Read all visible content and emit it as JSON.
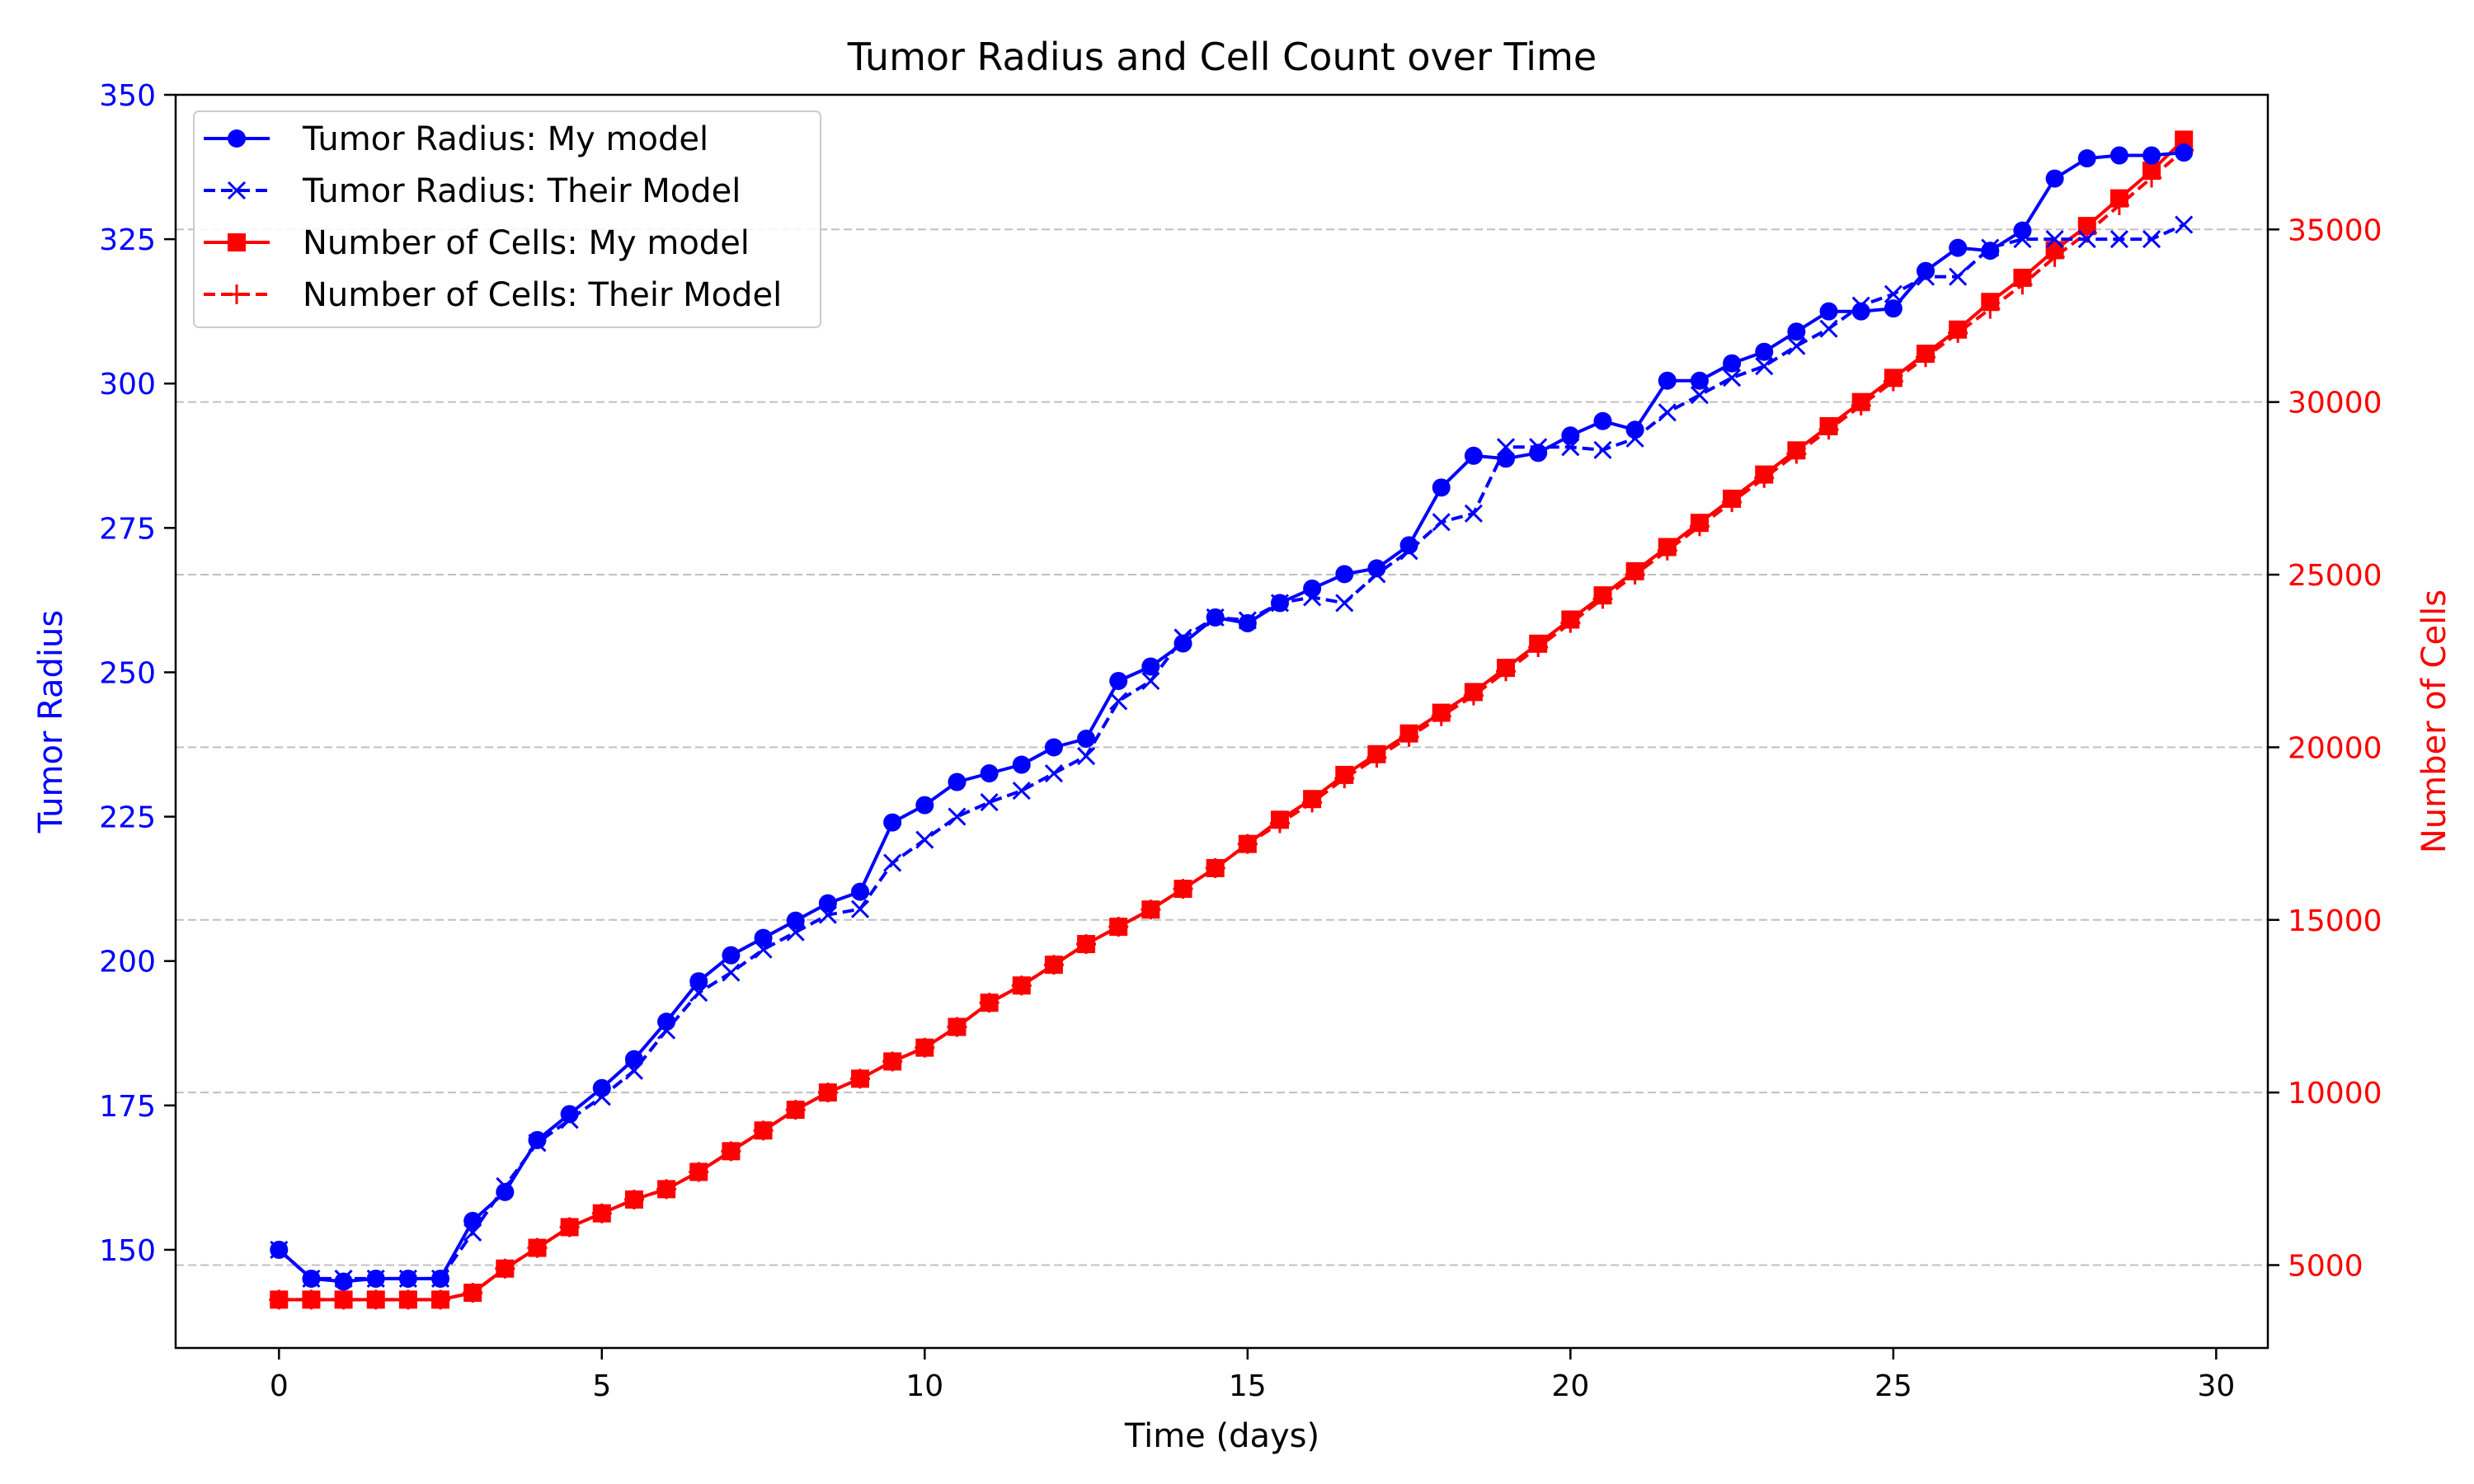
{
  "chart_data": {
    "type": "line",
    "title": "Tumor Radius and Cell Count over Time",
    "xlabel": "Time (days)",
    "ylabel_left": "Tumor Radius",
    "ylabel_right": "Number of Cells",
    "xlim": [
      -1.6,
      30.8
    ],
    "ylim_left": [
      133,
      350
    ],
    "ylim_right": [
      2600,
      38900
    ],
    "x_ticks": [
      0,
      5,
      10,
      15,
      20,
      25,
      30
    ],
    "y_ticks_left": [
      150,
      175,
      200,
      225,
      250,
      275,
      300,
      325,
      350
    ],
    "y_ticks_right": [
      5000,
      10000,
      15000,
      20000,
      25000,
      30000,
      35000
    ],
    "grid": "horizontal-dashed",
    "legend_position": "top-left",
    "colors": {
      "left_axis": "#0000ff",
      "right_axis": "#ff0000",
      "grid": "#c0c0c0"
    },
    "x": [
      0,
      0.5,
      1,
      1.5,
      2,
      2.5,
      3,
      3.5,
      4,
      4.5,
      5,
      5.5,
      6,
      6.5,
      7,
      7.5,
      8,
      8.5,
      9,
      9.5,
      10,
      10.5,
      11,
      11.5,
      12,
      12.5,
      13,
      13.5,
      14,
      14.5,
      15,
      15.5,
      16,
      16.5,
      17,
      17.5,
      18,
      18.5,
      19,
      19.5,
      20,
      20.5,
      21,
      21.5,
      22,
      22.5,
      23,
      23.5,
      24,
      24.5,
      25,
      25.5,
      26,
      26.5,
      27,
      27.5,
      28,
      28.5,
      29,
      29.5
    ],
    "series": [
      {
        "name": "Tumor Radius: My model",
        "axis": "left",
        "color": "#0000ff",
        "line": "solid",
        "marker": "circle",
        "values": [
          150,
          145,
          144.5,
          145,
          145,
          145,
          155,
          160,
          169,
          173.5,
          178,
          183,
          189.5,
          196.5,
          201,
          204,
          207,
          210,
          212,
          224,
          227,
          231,
          232.5,
          234,
          237,
          238.5,
          248.5,
          251,
          255,
          259.5,
          258.5,
          262,
          264.5,
          267,
          268,
          272,
          282,
          287.5,
          287,
          288,
          291,
          293.5,
          292,
          300.5,
          300.5,
          303.5,
          305.5,
          309,
          312.5,
          312.5,
          313,
          319.5,
          323.5,
          323,
          326.5,
          335.5,
          339,
          339.5,
          339.5,
          340
        ]
      },
      {
        "name": "Tumor Radius: Their Model",
        "axis": "left",
        "color": "#0000ff",
        "line": "dashed",
        "marker": "x",
        "values": [
          150,
          145,
          145,
          145,
          145,
          145,
          153,
          161,
          168.5,
          172.5,
          176.5,
          181,
          188,
          194.5,
          198,
          202,
          205,
          208,
          209,
          217,
          221,
          225,
          227.5,
          229.5,
          232.5,
          235.5,
          245,
          248.5,
          256,
          259.5,
          259,
          262,
          263,
          262,
          267,
          271,
          276,
          277.5,
          289,
          289,
          289,
          288.5,
          290.5,
          295,
          298,
          301,
          303,
          306.5,
          309.5,
          313.5,
          315.5,
          318.5,
          318.5,
          323.5,
          325,
          325,
          325,
          325,
          325,
          327.5
        ]
      },
      {
        "name": "Number of Cells: My model",
        "axis": "right",
        "color": "#ff0000",
        "line": "solid",
        "marker": "square",
        "values": [
          4000,
          4000,
          4000,
          4000,
          4000,
          4000,
          4200,
          4900,
          5500,
          6100,
          6500,
          6900,
          7200,
          7700,
          8300,
          8900,
          9500,
          10000,
          10400,
          10900,
          11300,
          11900,
          12600,
          13100,
          13700,
          14300,
          14800,
          15300,
          15900,
          16500,
          17200,
          17900,
          18500,
          19200,
          19800,
          20400,
          21000,
          21600,
          22300,
          23000,
          23700,
          24400,
          25100,
          25800,
          26500,
          27200,
          27900,
          28600,
          29300,
          30000,
          30700,
          31400,
          32100,
          32900,
          33600,
          34400,
          35100,
          35900,
          36700,
          37600
        ]
      },
      {
        "name": "Number of Cells: Their Model",
        "axis": "right",
        "color": "#ff0000",
        "line": "dashed",
        "marker": "plus",
        "values": [
          4000,
          4000,
          4000,
          4000,
          4000,
          4000,
          4200,
          4900,
          5500,
          6100,
          6500,
          6900,
          7200,
          7700,
          8300,
          8900,
          9500,
          10000,
          10400,
          10900,
          11300,
          11900,
          12600,
          13100,
          13700,
          14300,
          14800,
          15300,
          15900,
          16500,
          17200,
          17800,
          18400,
          19100,
          19700,
          20300,
          20900,
          21500,
          22200,
          22900,
          23600,
          24300,
          25000,
          25700,
          26400,
          27100,
          27800,
          28500,
          29200,
          29900,
          30600,
          31300,
          32000,
          32700,
          33400,
          34200,
          34900,
          35700,
          36500,
          37300
        ]
      }
    ]
  }
}
